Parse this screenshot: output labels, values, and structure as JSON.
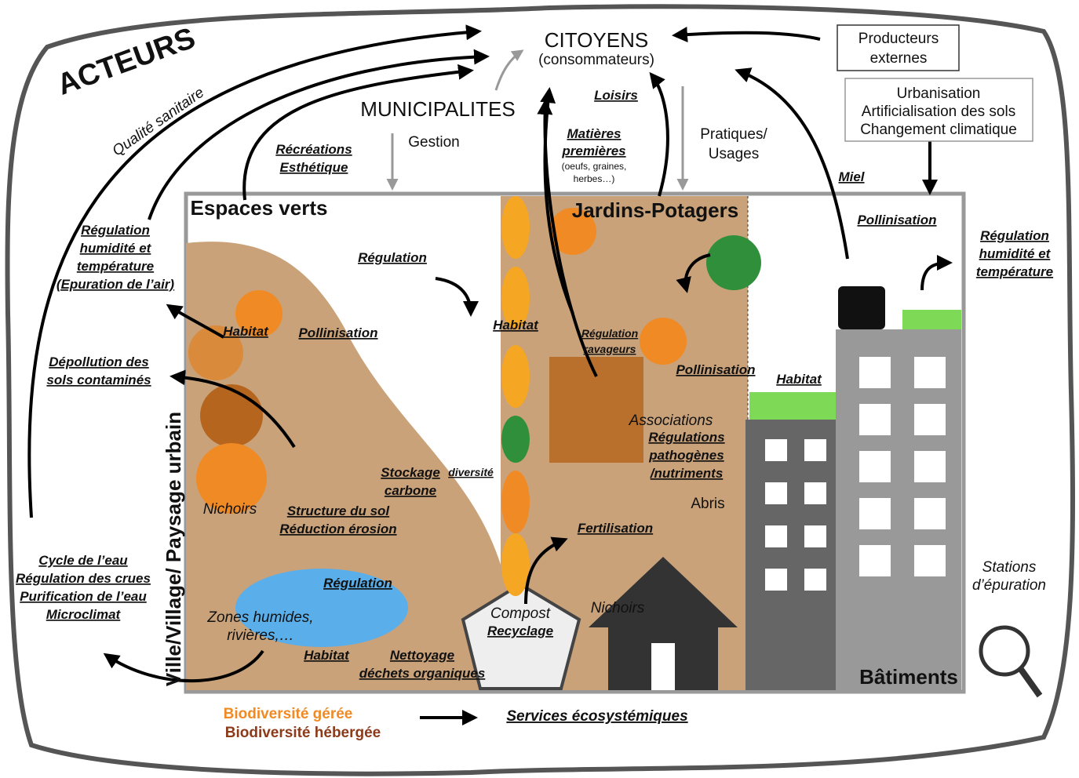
{
  "actors": {
    "title": "ACTEURS",
    "health": "Qualité sanitaire"
  },
  "citizens": {
    "title": "CITOYENS",
    "subtitle": "(consommateurs)"
  },
  "external_producers": [
    "Producteurs",
    "externes"
  ],
  "pressures": [
    "Urbanisation",
    "Artificialisation des sols",
    "Changement climatique"
  ],
  "municipalities": {
    "title": "MUNICIPALITES",
    "action": "Gestion"
  },
  "flows": {
    "leisure": "Loisirs",
    "raw_materials": [
      "Matières",
      "premières"
    ],
    "raw_materials_examples": [
      "(oeufs, graines,",
      "herbes…)"
    ],
    "practices": [
      "Pratiques/",
      "Usages"
    ],
    "recreation": [
      "Récréations",
      "Esthétique"
    ],
    "honey": "Miel"
  },
  "zones": {
    "green_spaces": "Espaces verts",
    "gardens": "Jardins-Potagers",
    "buildings": "Bâtiments",
    "urban": "Ville/Village/ Paysage urbain",
    "wetlands": [
      "Zones humides,",
      "rivières,…"
    ],
    "compost": "Compost",
    "shelters": "Abris",
    "nest_boxes": [
      "Nichoirs",
      "Nichoirs"
    ],
    "treatment": [
      "Stations",
      "d’épuration"
    ],
    "associations": "Associations",
    "diversity": "diversité"
  },
  "services": [
    [
      "Régulation",
      "humidité et",
      "température",
      "(Epuration de l’air)"
    ],
    [
      "Régulation",
      "humidité et",
      "température"
    ],
    [
      "Pollinisation"
    ],
    [
      "Régulation"
    ],
    [
      "Habitat"
    ],
    [
      "Pollinisation"
    ],
    [
      "Habitat"
    ],
    [
      "Régulation",
      "ravageurs"
    ],
    [
      "Pollinisation"
    ],
    [
      "Habitat"
    ],
    [
      "Dépollution des",
      "sols contaminés"
    ],
    [
      "Régulations",
      "pathogènes",
      "/nutriments"
    ],
    [
      "Stockage",
      "carbone"
    ],
    [
      "Structure du sol",
      "Réduction érosion"
    ],
    [
      "Fertilisation"
    ],
    [
      "Cycle de l’eau",
      "Régulation des crues",
      "Purification de l’eau",
      "Microclimat"
    ],
    [
      "Régulation"
    ],
    [
      "Recyclage"
    ],
    [
      "Habitat"
    ],
    [
      "Nettoyage",
      "déchets organiques"
    ]
  ],
  "legend": {
    "managed": "Biodiversité gérée",
    "hosted": "Biodiversité hébergée",
    "services": "Services écosystémiques"
  }
}
